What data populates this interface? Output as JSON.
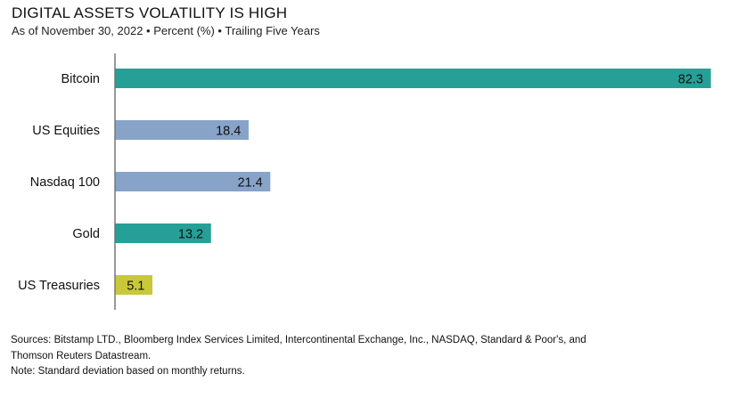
{
  "title": "DIGITAL ASSETS VOLATILITY IS HIGH",
  "subtitle": "As of November 30, 2022 • Percent (%) • Trailing Five Years",
  "footnotes": {
    "sources_line1": "Sources: Bitstamp LTD., Bloomberg Index Services Limited, Intercontinental Exchange, Inc., NASDAQ, Standard & Poor's, and",
    "sources_line2": "Thomson Reuters Datastream.",
    "note": "Note: Standard deviation based on monthly returns."
  },
  "chart_data": {
    "type": "bar",
    "orientation": "horizontal",
    "categories": [
      "Bitcoin",
      "US Equities",
      "Nasdaq 100",
      "Gold",
      "US Treasuries"
    ],
    "values": [
      82.3,
      18.4,
      21.4,
      13.2,
      5.1
    ],
    "value_labels": [
      "82.3",
      "18.4",
      "21.4",
      "13.2",
      "5.1"
    ],
    "colors": [
      "#26a096",
      "#87a3c8",
      "#87a3c8",
      "#26a096",
      "#c9c83a"
    ],
    "xlim": [
      0,
      82.3
    ],
    "grid": false,
    "legend": "none",
    "xlabel": "",
    "ylabel": ""
  }
}
